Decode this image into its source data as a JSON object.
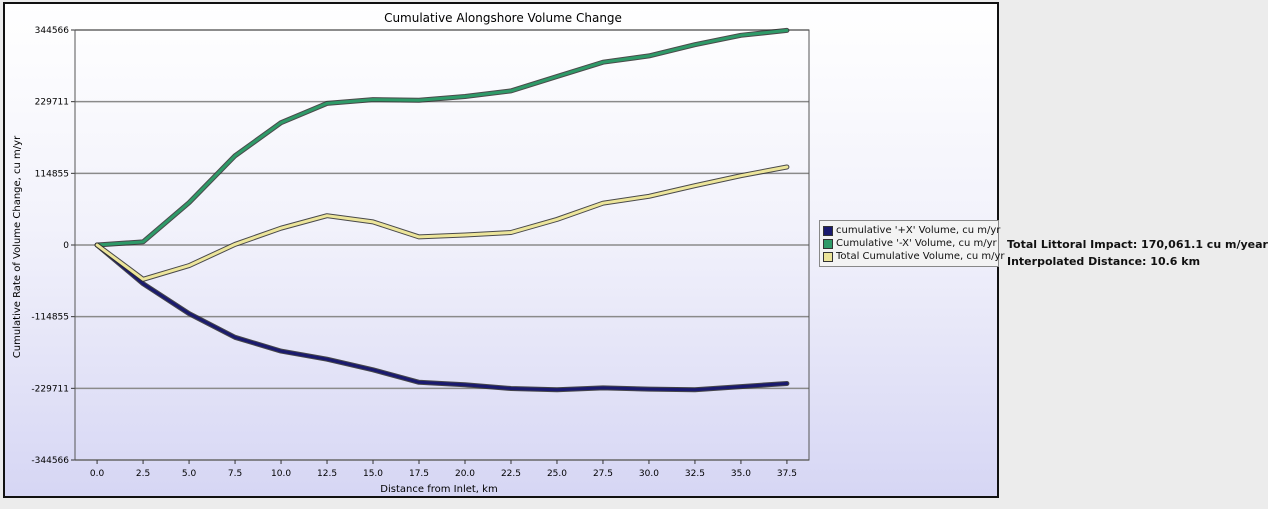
{
  "side_panel": {
    "impact_text": "Total Littoral Impact: 170,061.1 cu m/year",
    "distance_text": "Interpolated Distance: 10.6 km"
  },
  "chart_data": {
    "type": "line",
    "title": "Cumulative Alongshore Volume Change",
    "xlabel": "Distance from Inlet, km",
    "ylabel": "Cumulative Rate of Volume Change, cu m/yr",
    "x": [
      0.0,
      2.5,
      5.0,
      7.5,
      10.0,
      12.5,
      15.0,
      17.5,
      20.0,
      22.5,
      25.0,
      27.5,
      30.0,
      32.5,
      35.0,
      37.5
    ],
    "x_tick_labels": [
      "0.0",
      "2.5",
      "5.0",
      "7.5",
      "10.0",
      "12.5",
      "15.0",
      "17.5",
      "20.0",
      "22.5",
      "25.0",
      "27.5",
      "30.0",
      "32.5",
      "35.0",
      "37.5"
    ],
    "xlim": [
      -1.2,
      38.7
    ],
    "ylim": [
      -344566,
      344566
    ],
    "y_ticks": [
      344566,
      229711,
      114855,
      0,
      -114855,
      -229711,
      -344566
    ],
    "y_tick_labels": [
      "344566",
      "229711",
      "114855",
      "0",
      "-114855",
      "-229711",
      "-344566"
    ],
    "grid": "horizontal",
    "legend_position": "right",
    "series": [
      {
        "name": "cumulative '+X' Volume, cu m/yr",
        "color": "#1a1a6e",
        "values": [
          0,
          -62000,
          -110000,
          -148000,
          -170000,
          -183000,
          -200000,
          -220000,
          -224000,
          -230000,
          -232000,
          -229000,
          -231000,
          -232000,
          -227000,
          -222000
        ]
      },
      {
        "name": "Cumulative '-X' Volume, cu m/yr",
        "color": "#2e9a68",
        "values": [
          0,
          5000,
          68000,
          143000,
          196000,
          227000,
          233000,
          232000,
          238000,
          247000,
          270000,
          293000,
          303000,
          321000,
          336000,
          344000
        ]
      },
      {
        "name": "Total Cumulative Volume, cu m/yr",
        "color": "#ece59a",
        "values": [
          0,
          -55000,
          -33000,
          1000,
          27000,
          47000,
          37000,
          13000,
          16000,
          20000,
          41000,
          67000,
          78000,
          95000,
          111000,
          125000
        ]
      }
    ]
  }
}
